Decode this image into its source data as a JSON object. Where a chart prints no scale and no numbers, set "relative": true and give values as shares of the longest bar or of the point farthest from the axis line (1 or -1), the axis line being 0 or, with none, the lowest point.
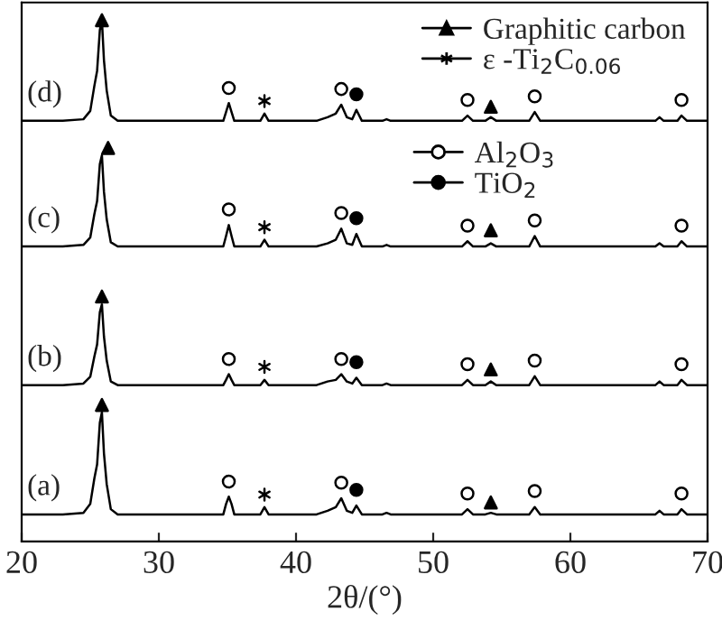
{
  "chart_data": {
    "type": "line",
    "relative": true,
    "xlabel": "2θ/(°)",
    "xlim": [
      20,
      70
    ],
    "xticks": [
      20,
      30,
      40,
      50,
      60,
      70
    ],
    "tick_labels": "x",
    "legend": "right",
    "x": [
      20,
      23,
      24.5,
      25.0,
      25.3,
      25.5,
      25.7,
      25.85,
      26.0,
      26.2,
      26.5,
      27,
      30,
      34.7,
      34.9,
      35.1,
      35.3,
      35.5,
      37.4,
      37.7,
      38.0,
      41.5,
      42.3,
      42.9,
      43.3,
      43.7,
      44.1,
      44.4,
      44.8,
      46.3,
      46.6,
      46.9,
      52.1,
      52.5,
      52.9,
      53.8,
      54.2,
      54.6,
      57.0,
      57.4,
      57.8,
      66.2,
      66.5,
      66.8,
      67.8,
      68.1,
      68.5,
      70
    ],
    "series": [
      {
        "name": "(d)",
        "color": "#000000",
        "values": [
          0.807,
          0.807,
          0.81,
          0.826,
          0.874,
          0.903,
          0.981,
          1.0,
          0.923,
          0.865,
          0.817,
          0.807,
          0.807,
          0.807,
          0.824,
          0.841,
          0.824,
          0.807,
          0.807,
          0.821,
          0.807,
          0.807,
          0.814,
          0.821,
          0.838,
          0.814,
          0.81,
          0.828,
          0.807,
          0.807,
          0.81,
          0.807,
          0.807,
          0.817,
          0.807,
          0.807,
          0.814,
          0.807,
          0.807,
          0.824,
          0.807,
          0.807,
          0.814,
          0.807,
          0.807,
          0.817,
          0.807,
          0.807
        ]
      },
      {
        "name": "(c)",
        "color": "#000000",
        "values": [
          0.566,
          0.566,
          0.569,
          0.583,
          0.628,
          0.653,
          0.724,
          0.741,
          0.671,
          0.618,
          0.574,
          0.566,
          0.566,
          0.566,
          0.586,
          0.607,
          0.586,
          0.566,
          0.566,
          0.579,
          0.566,
          0.566,
          0.572,
          0.579,
          0.6,
          0.572,
          0.569,
          0.59,
          0.566,
          0.566,
          0.569,
          0.566,
          0.566,
          0.576,
          0.566,
          0.566,
          0.572,
          0.566,
          0.566,
          0.586,
          0.566,
          0.566,
          0.572,
          0.566,
          0.566,
          0.576,
          0.566,
          0.566
        ]
      },
      {
        "name": "(b)",
        "color": "#000000",
        "values": [
          0.3,
          0.3,
          0.303,
          0.316,
          0.355,
          0.378,
          0.44,
          0.455,
          0.393,
          0.347,
          0.307,
          0.3,
          0.3,
          0.3,
          0.31,
          0.321,
          0.31,
          0.3,
          0.3,
          0.31,
          0.3,
          0.3,
          0.307,
          0.31,
          0.321,
          0.307,
          0.303,
          0.314,
          0.3,
          0.3,
          0.303,
          0.3,
          0.3,
          0.31,
          0.3,
          0.3,
          0.307,
          0.3,
          0.3,
          0.317,
          0.3,
          0.3,
          0.307,
          0.3,
          0.3,
          0.31,
          0.3,
          0.3
        ]
      },
      {
        "name": "(a)",
        "color": "#000000",
        "values": [
          0.052,
          0.052,
          0.055,
          0.072,
          0.121,
          0.148,
          0.228,
          0.248,
          0.169,
          0.11,
          0.062,
          0.052,
          0.052,
          0.052,
          0.072,
          0.086,
          0.072,
          0.052,
          0.052,
          0.066,
          0.052,
          0.052,
          0.059,
          0.066,
          0.083,
          0.059,
          0.055,
          0.069,
          0.052,
          0.052,
          0.055,
          0.052,
          0.052,
          0.062,
          0.052,
          0.052,
          0.055,
          0.052,
          0.052,
          0.066,
          0.052,
          0.052,
          0.059,
          0.052,
          0.052,
          0.062,
          0.052,
          0.052
        ]
      },
      {
        "name": "Graphitic carbon",
        "type": "scatter",
        "marker": "triangle",
        "color": "#000000",
        "x": [
          25.85,
          54.2,
          26.3,
          54.2,
          25.85,
          54.2,
          25.85,
          54.2
        ],
        "values": [
          1.0,
          0.834,
          0.755,
          0.597,
          0.47,
          0.33,
          0.262,
          0.075
        ]
      },
      {
        "name": "ε -Ti$_{2}$C$_{0.06}$",
        "type": "scatter",
        "marker": "cross",
        "color": "#000000",
        "x": [
          37.7,
          37.7,
          37.7,
          37.7
        ],
        "values": [
          0.845,
          0.603,
          0.335,
          0.09
        ]
      },
      {
        "name": "Al$_{2}$O$_{3}$",
        "type": "scatter",
        "marker": "circle",
        "color": "#ffffff",
        "x": [
          35.1,
          43.3,
          52.5,
          57.4,
          68.1,
          35.1,
          43.3,
          52.5,
          57.4,
          68.1,
          35.1,
          43.3,
          52.5,
          57.4,
          68.1,
          35.1,
          43.3,
          52.5,
          57.4,
          68.1
        ],
        "values": [
          0.87,
          0.868,
          0.847,
          0.854,
          0.847,
          0.637,
          0.63,
          0.606,
          0.616,
          0.606,
          0.35,
          0.35,
          0.34,
          0.347,
          0.34,
          0.115,
          0.113,
          0.092,
          0.097,
          0.092
        ]
      },
      {
        "name": "TiO$_{2}$",
        "type": "scatter",
        "marker": "circle",
        "color": "#000000",
        "x": [
          44.4,
          44.4,
          44.4,
          44.4
        ],
        "values": [
          0.858,
          0.62,
          0.344,
          0.099
        ]
      }
    ]
  }
}
